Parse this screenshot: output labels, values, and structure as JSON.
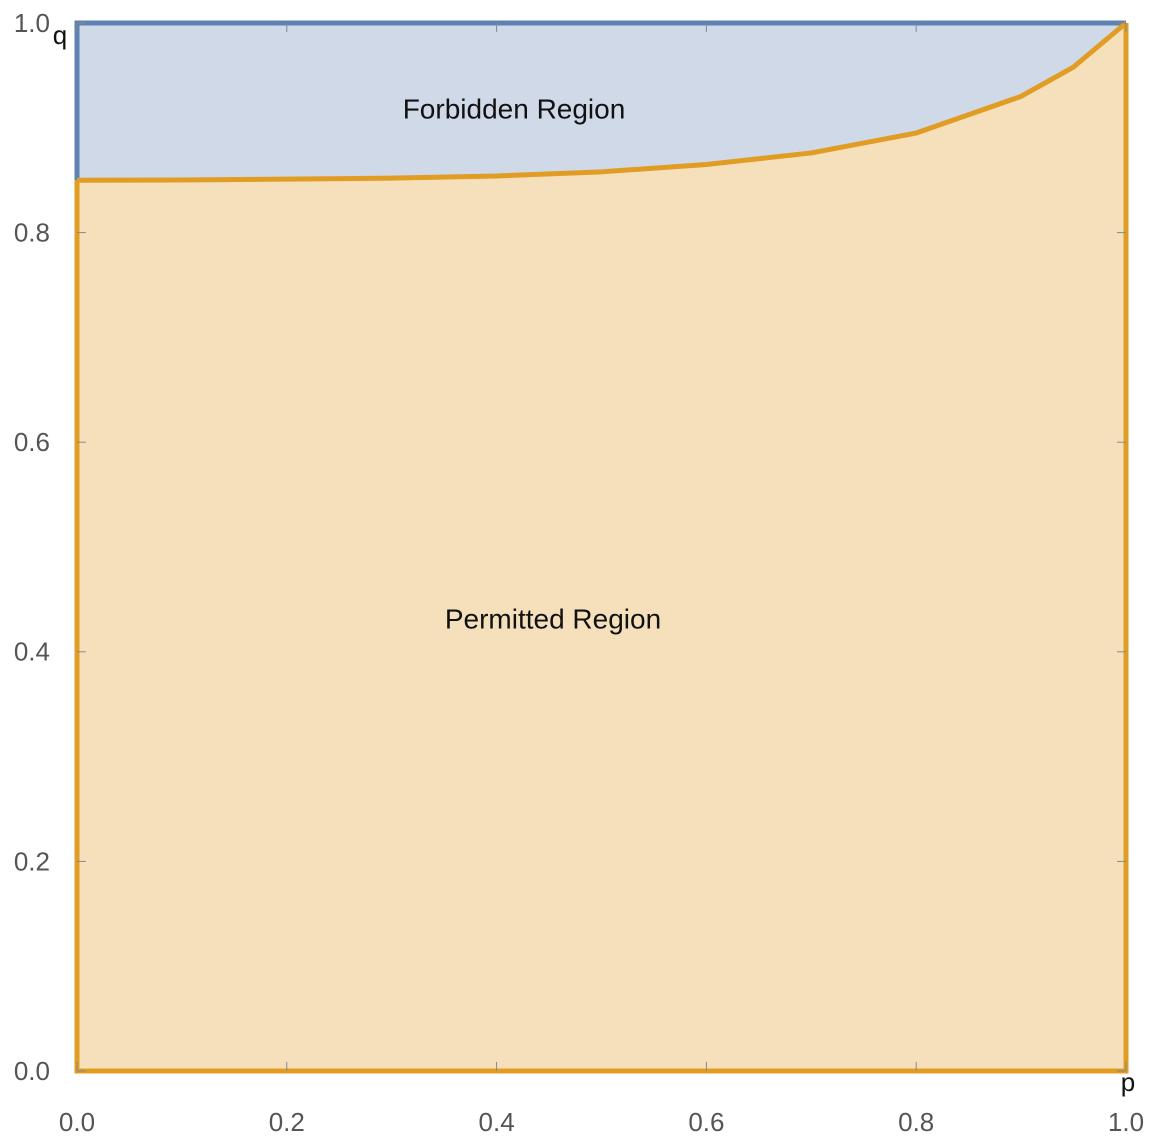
{
  "chart_data": {
    "type": "region",
    "x_label": "p",
    "y_label": "q",
    "x": [
      0,
      0.1,
      0.2,
      0.3,
      0.4,
      0.5,
      0.6,
      0.7,
      0.8,
      0.9,
      0.95,
      1
    ],
    "values": [
      0.85,
      0.8502,
      0.851,
      0.852,
      0.854,
      0.858,
      0.865,
      0.876,
      0.895,
      0.93,
      0.958,
      1.0
    ],
    "regions": [
      {
        "name": "Permitted Region",
        "color": "#e19c24",
        "fill": "#f6e0bc"
      },
      {
        "name": "Forbidden Region",
        "color": "#5e81b5",
        "fill": "#cfd9e8"
      }
    ],
    "xlim": [
      0,
      1
    ],
    "ylim": [
      0,
      1
    ],
    "xticks": [
      {
        "value": 0,
        "label": "0.0"
      },
      0.2,
      0.4,
      0.6,
      0.8,
      {
        "value": 1,
        "label": "1.0"
      }
    ],
    "yticks": [
      {
        "value": 0,
        "label": "0.0"
      },
      0.2,
      0.4,
      0.6,
      0.8,
      {
        "value": 1,
        "label": "1.0"
      }
    ]
  }
}
